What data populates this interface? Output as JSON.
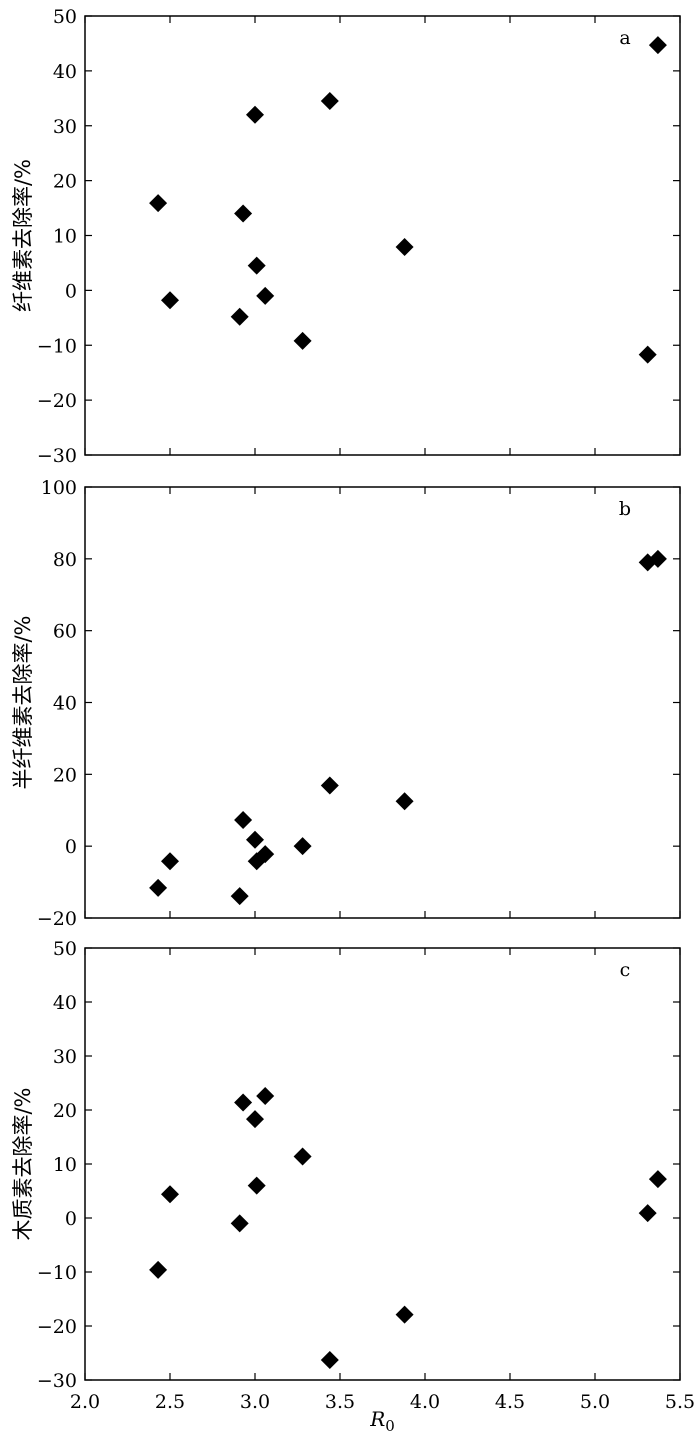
{
  "chart_data": [
    {
      "type": "scatter",
      "panel_label": "a",
      "ylabel": "纤维素去除率/%",
      "ylim": [
        -30,
        50
      ],
      "yticks": [
        -30,
        -20,
        -10,
        0,
        10,
        20,
        30,
        40,
        50
      ],
      "xlim": [
        2.0,
        5.5
      ],
      "xticks": [
        2.0,
        2.5,
        3.0,
        3.5,
        4.0,
        4.5,
        5.0,
        5.5
      ],
      "grid": false,
      "points": [
        {
          "x": 2.43,
          "y": 15.9
        },
        {
          "x": 2.5,
          "y": -1.8
        },
        {
          "x": 2.91,
          "y": -4.8
        },
        {
          "x": 2.93,
          "y": 14.0
        },
        {
          "x": 3.0,
          "y": 32.0
        },
        {
          "x": 3.01,
          "y": 4.5
        },
        {
          "x": 3.06,
          "y": -1.0
        },
        {
          "x": 3.28,
          "y": -9.2
        },
        {
          "x": 3.44,
          "y": 34.5
        },
        {
          "x": 3.88,
          "y": 7.9
        },
        {
          "x": 5.31,
          "y": -11.7
        },
        {
          "x": 5.37,
          "y": 44.7
        }
      ]
    },
    {
      "type": "scatter",
      "panel_label": "b",
      "ylabel": "半纤维素去除率/%",
      "ylim": [
        -20,
        100
      ],
      "yticks": [
        -20,
        0,
        20,
        40,
        60,
        80,
        100
      ],
      "xlim": [
        2.0,
        5.5
      ],
      "xticks": [
        2.0,
        2.5,
        3.0,
        3.5,
        4.0,
        4.5,
        5.0,
        5.5
      ],
      "grid": false,
      "points": [
        {
          "x": 2.43,
          "y": -11.6
        },
        {
          "x": 2.5,
          "y": -4.2
        },
        {
          "x": 2.91,
          "y": -13.9
        },
        {
          "x": 2.93,
          "y": 7.3
        },
        {
          "x": 3.0,
          "y": 1.8
        },
        {
          "x": 3.01,
          "y": -4.2
        },
        {
          "x": 3.06,
          "y": -2.2
        },
        {
          "x": 3.28,
          "y": 0.0
        },
        {
          "x": 3.44,
          "y": 16.9
        },
        {
          "x": 3.88,
          "y": 12.5
        },
        {
          "x": 5.31,
          "y": 79.0
        },
        {
          "x": 5.37,
          "y": 80.0
        }
      ]
    },
    {
      "type": "scatter",
      "panel_label": "c",
      "ylabel": "木质素去除率/%",
      "xlabel": "R",
      "xlabel_sub": "0",
      "ylim": [
        -30,
        50
      ],
      "yticks": [
        -30,
        -20,
        -10,
        0,
        10,
        20,
        30,
        40,
        50
      ],
      "xlim": [
        2.0,
        5.5
      ],
      "xticks": [
        2.0,
        2.5,
        3.0,
        3.5,
        4.0,
        4.5,
        5.0,
        5.5
      ],
      "grid": false,
      "points": [
        {
          "x": 2.43,
          "y": -9.6
        },
        {
          "x": 2.5,
          "y": 4.4
        },
        {
          "x": 2.91,
          "y": -1.0
        },
        {
          "x": 2.93,
          "y": 21.4
        },
        {
          "x": 3.0,
          "y": 18.3
        },
        {
          "x": 3.01,
          "y": 6.0
        },
        {
          "x": 3.06,
          "y": 22.6
        },
        {
          "x": 3.28,
          "y": 11.4
        },
        {
          "x": 3.44,
          "y": -26.3
        },
        {
          "x": 3.88,
          "y": -17.9
        },
        {
          "x": 5.31,
          "y": 0.9
        },
        {
          "x": 5.37,
          "y": 7.2
        }
      ]
    }
  ]
}
